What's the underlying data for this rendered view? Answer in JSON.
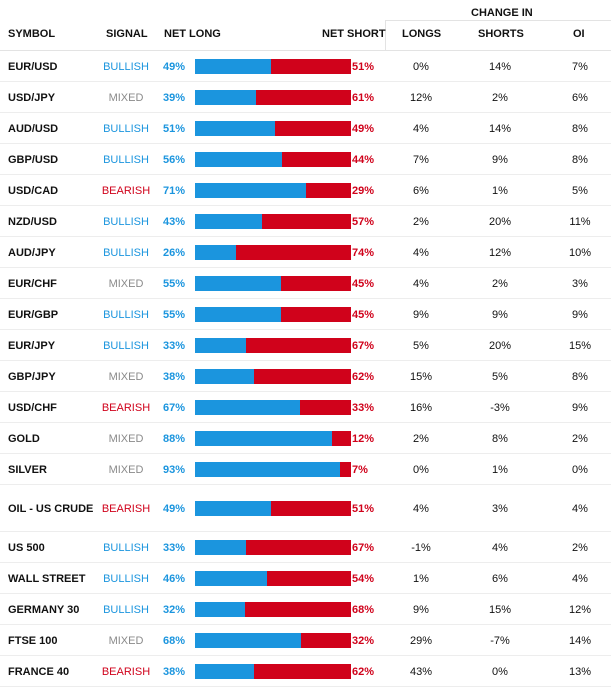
{
  "colors": {
    "bullish": "#1b95de",
    "mixed": "#8a8a8a",
    "bearish": "#d0021b",
    "long_bar": "#1b95de",
    "short_bar": "#d0021b"
  },
  "headers": {
    "symbol": "SYMBOL",
    "signal": "SIGNAL",
    "net_long": "NET LONG",
    "net_short": "NET SHORT",
    "change_in": "CHANGE IN",
    "longs": "LONGS",
    "shorts": "SHORTS",
    "oi": "OI"
  },
  "rows": [
    {
      "symbol": "EUR/USD",
      "signal": "BULLISH",
      "net_long": 49,
      "net_long_label": "49%",
      "net_short_label": "51%",
      "longs": "0%",
      "shorts": "14%",
      "oi": "7%"
    },
    {
      "symbol": "USD/JPY",
      "signal": "MIXED",
      "net_long": 39,
      "net_long_label": "39%",
      "net_short_label": "61%",
      "longs": "12%",
      "shorts": "2%",
      "oi": "6%"
    },
    {
      "symbol": "AUD/USD",
      "signal": "BULLISH",
      "net_long": 51,
      "net_long_label": "51%",
      "net_short_label": "49%",
      "longs": "4%",
      "shorts": "14%",
      "oi": "8%"
    },
    {
      "symbol": "GBP/USD",
      "signal": "BULLISH",
      "net_long": 56,
      "net_long_label": "56%",
      "net_short_label": "44%",
      "longs": "7%",
      "shorts": "9%",
      "oi": "8%"
    },
    {
      "symbol": "USD/CAD",
      "signal": "BEARISH",
      "net_long": 71,
      "net_long_label": "71%",
      "net_short_label": "29%",
      "longs": "6%",
      "shorts": "1%",
      "oi": "5%"
    },
    {
      "symbol": "NZD/USD",
      "signal": "BULLISH",
      "net_long": 43,
      "net_long_label": "43%",
      "net_short_label": "57%",
      "longs": "2%",
      "shorts": "20%",
      "oi": "11%"
    },
    {
      "symbol": "AUD/JPY",
      "signal": "BULLISH",
      "net_long": 26,
      "net_long_label": "26%",
      "net_short_label": "74%",
      "longs": "4%",
      "shorts": "12%",
      "oi": "10%"
    },
    {
      "symbol": "EUR/CHF",
      "signal": "MIXED",
      "net_long": 55,
      "net_long_label": "55%",
      "net_short_label": "45%",
      "longs": "4%",
      "shorts": "2%",
      "oi": "3%"
    },
    {
      "symbol": "EUR/GBP",
      "signal": "BULLISH",
      "net_long": 55,
      "net_long_label": "55%",
      "net_short_label": "45%",
      "longs": "9%",
      "shorts": "9%",
      "oi": "9%"
    },
    {
      "symbol": "EUR/JPY",
      "signal": "BULLISH",
      "net_long": 33,
      "net_long_label": "33%",
      "net_short_label": "67%",
      "longs": "5%",
      "shorts": "20%",
      "oi": "15%"
    },
    {
      "symbol": "GBP/JPY",
      "signal": "MIXED",
      "net_long": 38,
      "net_long_label": "38%",
      "net_short_label": "62%",
      "longs": "15%",
      "shorts": "5%",
      "oi": "8%"
    },
    {
      "symbol": "USD/CHF",
      "signal": "BEARISH",
      "net_long": 67,
      "net_long_label": "67%",
      "net_short_label": "33%",
      "longs": "16%",
      "shorts": "-3%",
      "oi": "9%"
    },
    {
      "symbol": "GOLD",
      "signal": "MIXED",
      "net_long": 88,
      "net_long_label": "88%",
      "net_short_label": "12%",
      "longs": "2%",
      "shorts": "8%",
      "oi": "2%"
    },
    {
      "symbol": "SILVER",
      "signal": "MIXED",
      "net_long": 93,
      "net_long_label": "93%",
      "net_short_label": "7%",
      "longs": "0%",
      "shorts": "1%",
      "oi": "0%"
    },
    {
      "symbol": "OIL - US CRUDE",
      "signal": "BEARISH",
      "net_long": 49,
      "net_long_label": "49%",
      "net_short_label": "51%",
      "longs": "4%",
      "shorts": "3%",
      "oi": "4%",
      "tall": true
    },
    {
      "symbol": "US 500",
      "signal": "BULLISH",
      "net_long": 33,
      "net_long_label": "33%",
      "net_short_label": "67%",
      "longs": "-1%",
      "shorts": "4%",
      "oi": "2%"
    },
    {
      "symbol": "WALL STREET",
      "signal": "BULLISH",
      "net_long": 46,
      "net_long_label": "46%",
      "net_short_label": "54%",
      "longs": "1%",
      "shorts": "6%",
      "oi": "4%"
    },
    {
      "symbol": "GERMANY 30",
      "signal": "BULLISH",
      "net_long": 32,
      "net_long_label": "32%",
      "net_short_label": "68%",
      "longs": "9%",
      "shorts": "15%",
      "oi": "12%"
    },
    {
      "symbol": "FTSE 100",
      "signal": "MIXED",
      "net_long": 68,
      "net_long_label": "68%",
      "net_short_label": "32%",
      "longs": "29%",
      "shorts": "-7%",
      "oi": "14%"
    },
    {
      "symbol": "FRANCE 40",
      "signal": "BEARISH",
      "net_long": 38,
      "net_long_label": "38%",
      "net_short_label": "62%",
      "longs": "43%",
      "shorts": "0%",
      "oi": "13%"
    }
  ]
}
